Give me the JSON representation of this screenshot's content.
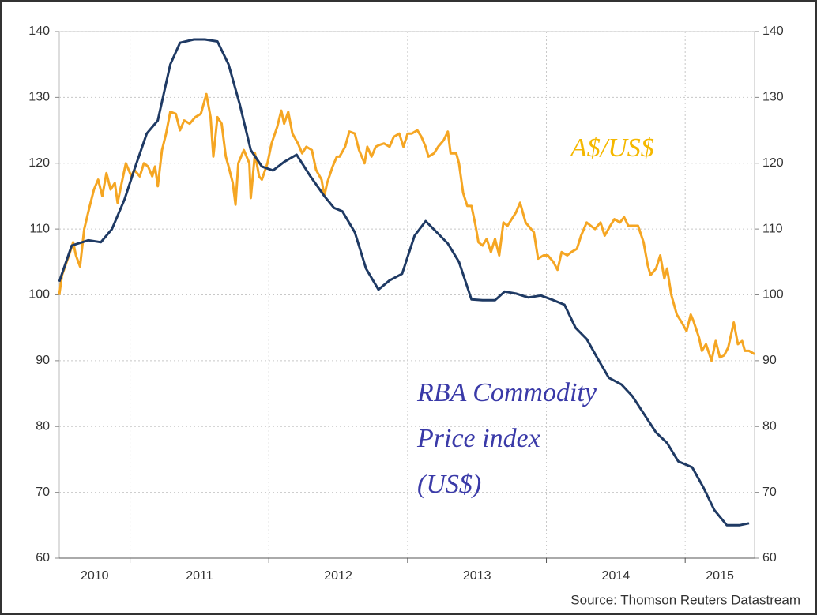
{
  "chart_data": {
    "type": "line",
    "xlim": [
      2010.49,
      2015.5
    ],
    "xticks": [
      2011,
      2012,
      2013,
      2014,
      2015
    ],
    "year_labels": [
      2010,
      2011,
      2012,
      2013,
      2014,
      2015
    ],
    "ylim": [
      60,
      140
    ],
    "yticks": [
      60,
      70,
      80,
      90,
      100,
      110,
      120,
      130,
      140
    ],
    "y2lim": [
      60,
      140
    ],
    "y2ticks": [
      60,
      70,
      80,
      90,
      100,
      110,
      120,
      130,
      140
    ],
    "grid": true,
    "series": [
      {
        "color": "#1f3a64",
        "x": [
          2010.49,
          2010.58,
          2010.7,
          2010.79,
          2010.87,
          2010.96,
          2011.03,
          2011.12,
          2011.2,
          2011.29,
          2011.36,
          2011.46,
          2011.54,
          2011.63,
          2011.71,
          2011.79,
          2011.87,
          2011.95,
          2012.03,
          2012.11,
          2012.2,
          2012.3,
          2012.4,
          2012.47,
          2012.53,
          2012.62,
          2012.7,
          2012.79,
          2012.87,
          2012.96,
          2013.05,
          2013.13,
          2013.22,
          2013.29,
          2013.37,
          2013.46,
          2013.54,
          2013.63,
          2013.7,
          2013.78,
          2013.87,
          2013.96,
          2014.05,
          2014.13,
          2014.21,
          2014.29,
          2014.37,
          2014.45,
          2014.54,
          2014.62,
          2014.7,
          2014.79,
          2014.87,
          2014.95,
          2015.05,
          2015.13,
          2015.21,
          2015.3,
          2015.39,
          2015.46
        ],
        "values": [
          102,
          107.5,
          108.3,
          108,
          110,
          114.5,
          119,
          124.5,
          126.5,
          135,
          138.3,
          138.8,
          138.8,
          138.5,
          135,
          129,
          122,
          119.5,
          118.9,
          120.2,
          121.3,
          118,
          115,
          113.2,
          112.7,
          109.5,
          104,
          100.8,
          102.2,
          103.2,
          109,
          111.2,
          109.3,
          107.8,
          105,
          99.3,
          99.2,
          99.2,
          100.5,
          100.2,
          99.6,
          99.9,
          99.2,
          98.5,
          95,
          93.3,
          90.3,
          87.4,
          86.4,
          84.6,
          82,
          79.1,
          77.5,
          74.7,
          73.8,
          70.8,
          67.3,
          65,
          65,
          65.3
        ]
      },
      {
        "color": "#f5a623",
        "axis": "y2",
        "x": [
          2010.49,
          2010.51,
          2010.56,
          2010.59,
          2010.61,
          2010.64,
          2010.67,
          2010.71,
          2010.74,
          2010.77,
          2010.8,
          2010.83,
          2010.86,
          2010.89,
          2010.91,
          2010.94,
          2010.97,
          2011.01,
          2011.03,
          2011.07,
          2011.1,
          2011.13,
          2011.16,
          2011.18,
          2011.2,
          2011.23,
          2011.26,
          2011.29,
          2011.33,
          2011.36,
          2011.39,
          2011.43,
          2011.47,
          2011.51,
          2011.55,
          2011.58,
          2011.6,
          2011.63,
          2011.66,
          2011.69,
          2011.71,
          2011.74,
          2011.76,
          2011.78,
          2011.82,
          2011.86,
          2011.87,
          2011.9,
          2011.93,
          2011.95,
          2011.99,
          2012.02,
          2012.06,
          2012.09,
          2012.11,
          2012.14,
          2012.17,
          2012.21,
          2012.24,
          2012.27,
          2012.31,
          2012.34,
          2012.38,
          2012.4,
          2012.42,
          2012.46,
          2012.49,
          2012.51,
          2012.55,
          2012.58,
          2012.62,
          2012.65,
          2012.69,
          2012.71,
          2012.74,
          2012.77,
          2012.8,
          2012.83,
          2012.87,
          2012.9,
          2012.94,
          2012.97,
          2013,
          2013.03,
          2013.07,
          2013.1,
          2013.13,
          2013.15,
          2013.19,
          2013.22,
          2013.26,
          2013.29,
          2013.31,
          2013.35,
          2013.37,
          2013.4,
          2013.43,
          2013.46,
          2013.49,
          2013.51,
          2013.54,
          2013.57,
          2013.6,
          2013.63,
          2013.66,
          2013.69,
          2013.72,
          2013.75,
          2013.78,
          2013.81,
          2013.85,
          2013.87,
          2013.91,
          2013.94,
          2013.98,
          2014.01,
          2014.05,
          2014.08,
          2014.11,
          2014.15,
          2014.18,
          2014.22,
          2014.25,
          2014.29,
          2014.32,
          2014.35,
          2014.39,
          2014.42,
          2014.46,
          2014.49,
          2014.53,
          2014.56,
          2014.59,
          2014.63,
          2014.66,
          2014.7,
          2014.73,
          2014.75,
          2014.79,
          2014.82,
          2014.85,
          2014.87,
          2014.9,
          2014.94,
          2014.97,
          2015.01,
          2015.04,
          2015.06,
          2015.1,
          2015.12,
          2015.15,
          2015.19,
          2015.22,
          2015.25,
          2015.28,
          2015.31,
          2015.35,
          2015.38,
          2015.41,
          2015.43,
          2015.46,
          2015.5
        ],
        "values": [
          100,
          103,
          106,
          108,
          106,
          104.3,
          110,
          113.5,
          116,
          117.5,
          115,
          118.5,
          116,
          117,
          114,
          117,
          120,
          118,
          119,
          118,
          120,
          119.5,
          118,
          119.5,
          116.5,
          122,
          124.5,
          127.8,
          127.5,
          125,
          126.5,
          126,
          127,
          127.5,
          130.5,
          127,
          121,
          127,
          126,
          121,
          119.5,
          117,
          113.7,
          120,
          122,
          120,
          114.7,
          121.5,
          118,
          117.5,
          120,
          123,
          125.5,
          128,
          126,
          127.8,
          124.5,
          123,
          121.5,
          122.5,
          122,
          119,
          117.5,
          115,
          117,
          119.5,
          121,
          121,
          122.5,
          124.8,
          124.5,
          122,
          120,
          122.5,
          121,
          122.5,
          122.8,
          123,
          122.5,
          124,
          124.5,
          122.5,
          124.5,
          124.5,
          125,
          124,
          122.5,
          121,
          121.5,
          122.5,
          123.5,
          124.8,
          121.5,
          121.5,
          120,
          115.5,
          113.5,
          113.5,
          110.5,
          108,
          107.5,
          108.5,
          106.5,
          108.5,
          106,
          111,
          110.5,
          111.5,
          112.5,
          114,
          111,
          110.5,
          109.5,
          105.5,
          106,
          106,
          105,
          103.8,
          106.5,
          106,
          106.5,
          107,
          109,
          111,
          110.5,
          110,
          111,
          109,
          110.5,
          111.5,
          111,
          111.8,
          110.5,
          110.5,
          110.5,
          108,
          104.5,
          103,
          104,
          106,
          102.5,
          104,
          100,
          97,
          96,
          94.5,
          97,
          96,
          93.5,
          91.5,
          92.5,
          90,
          93,
          90.5,
          90.8,
          92,
          95.8,
          92.5,
          93,
          91.5,
          91.5,
          91
        ]
      }
    ],
    "annotations": [
      {
        "lines": [
          "A$/US$"
        ],
        "color": "#f5b800"
      },
      {
        "lines": [
          "RBA Commodity",
          "Price index",
          "(US$)"
        ],
        "color": "#3a3aa8"
      }
    ],
    "source": "Source: Thomson Reuters Datastream"
  }
}
